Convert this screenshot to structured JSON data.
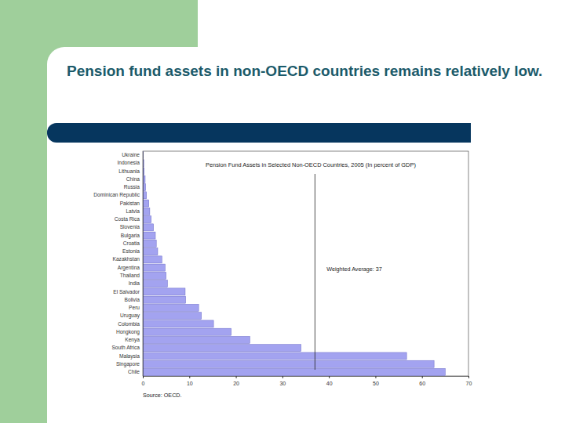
{
  "slide_title": "Pension fund assets in non-OECD countries remains relatively low.",
  "chart_data": {
    "type": "bar",
    "orientation": "horizontal",
    "title": "Pension Fund Assets in Selected Non-OECD Countries, 2005 (In percent of GDP)",
    "categories": [
      "Ukraine",
      "Indonesia",
      "Lithuania",
      "China",
      "Russia",
      "Dominican Republic",
      "Pakistan",
      "Latvia",
      "Costa Rica",
      "Slovenia",
      "Bulgaria",
      "Croatia",
      "Estonia",
      "Kazakhstan",
      "Argentina",
      "Thailand",
      "India",
      "El Salvador",
      "Bolivia",
      "Peru",
      "Uruguay",
      "Colombia",
      "Hongkong",
      "Kenya",
      "South Africa",
      "Malaysia",
      "Singapore",
      "Chile"
    ],
    "values": [
      0.1,
      0.2,
      0.3,
      0.5,
      0.6,
      0.8,
      1.3,
      1.5,
      1.8,
      2.3,
      2.7,
      2.9,
      3.2,
      4.1,
      4.8,
      5.0,
      5.3,
      9.1,
      9.2,
      12.0,
      12.6,
      15.2,
      19.0,
      23.0,
      34.0,
      56.7,
      62.6,
      65.0
    ],
    "color": "#a3a3f0",
    "xlim": [
      0,
      70
    ],
    "xticks": [
      0,
      10,
      20,
      30,
      40,
      50,
      60,
      70
    ],
    "reference_line": {
      "value": 37,
      "label": "Weighted Average: 37"
    },
    "source": "Source: OECD."
  }
}
